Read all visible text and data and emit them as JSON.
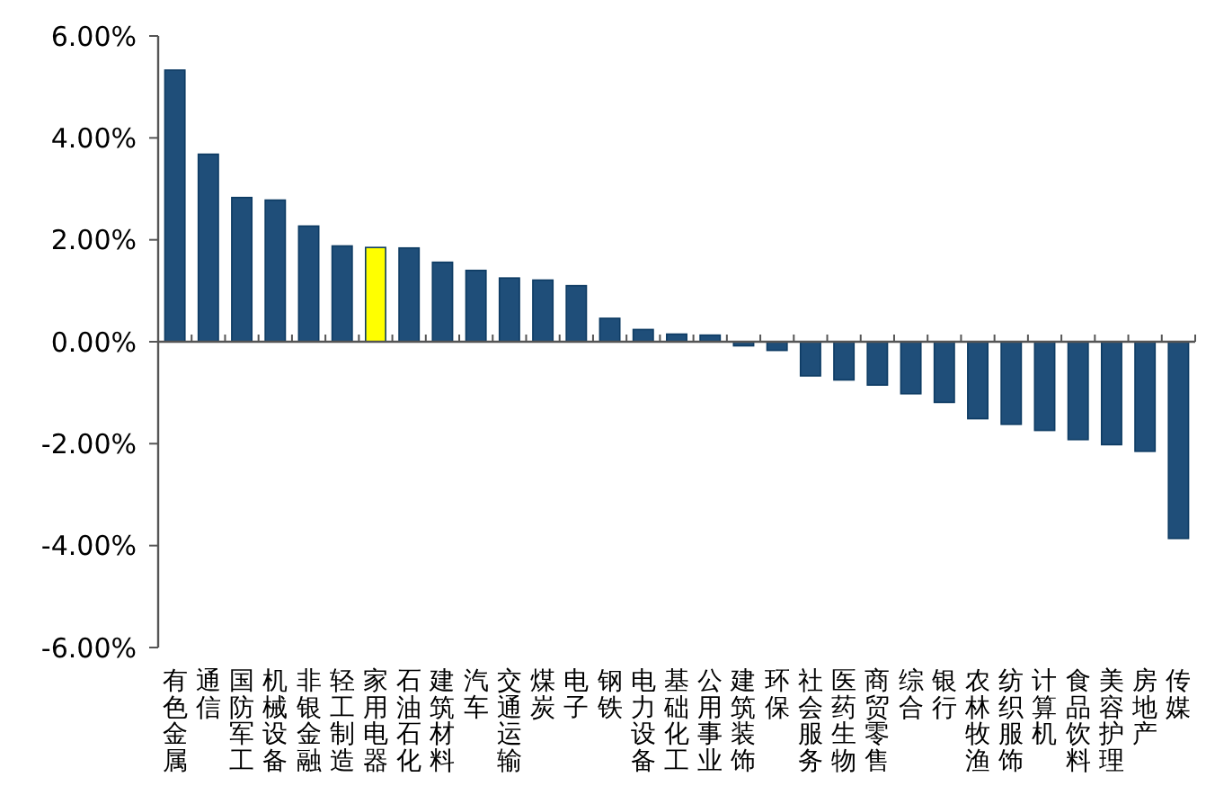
{
  "chart_data": {
    "type": "bar",
    "categories": [
      "有色金属",
      "通信",
      "国防军工",
      "机械设备",
      "非银金融",
      "轻工制造",
      "家用电器",
      "石油石化",
      "建筑材料",
      "汽车",
      "交通运输",
      "煤炭",
      "电子",
      "钢铁",
      "电力设备",
      "基础化工",
      "公用事业",
      "建筑装饰",
      "环保",
      "社会服务",
      "医药生物",
      "商贸零售",
      "综合",
      "银行",
      "农林牧渔",
      "纺织服饰",
      "计算机",
      "食品饮料",
      "美容护理",
      "房地产",
      "传媒"
    ],
    "values": [
      5.33,
      3.68,
      2.83,
      2.78,
      2.27,
      1.88,
      1.85,
      1.84,
      1.56,
      1.4,
      1.25,
      1.21,
      1.1,
      0.46,
      0.24,
      0.15,
      0.13,
      -0.08,
      -0.17,
      -0.67,
      -0.75,
      -0.85,
      -1.02,
      -1.19,
      -1.51,
      -1.62,
      -1.74,
      -1.92,
      -2.02,
      -2.15,
      -3.86
    ],
    "colors": [
      "#1f4e79",
      "#1f4e79",
      "#1f4e79",
      "#1f4e79",
      "#1f4e79",
      "#1f4e79",
      "#ffff00",
      "#1f4e79",
      "#1f4e79",
      "#1f4e79",
      "#1f4e79",
      "#1f4e79",
      "#1f4e79",
      "#1f4e79",
      "#1f4e79",
      "#1f4e79",
      "#1f4e79",
      "#1f4e79",
      "#1f4e79",
      "#1f4e79",
      "#1f4e79",
      "#1f4e79",
      "#1f4e79",
      "#1f4e79",
      "#1f4e79",
      "#1f4e79",
      "#1f4e79",
      "#1f4e79",
      "#1f4e79",
      "#1f4e79",
      "#1f4e79"
    ],
    "ylim": [
      -6,
      6
    ],
    "yticks": [
      {
        "value": -6,
        "label": "-6.00%"
      },
      {
        "value": -4,
        "label": "-4.00%"
      },
      {
        "value": -2,
        "label": "-2.00%"
      },
      {
        "value": 0,
        "label": "0.00%"
      },
      {
        "value": 2,
        "label": "2.00%"
      },
      {
        "value": 4,
        "label": "4.00%"
      },
      {
        "value": 6,
        "label": "6.00%"
      }
    ],
    "tick_labels": true
  }
}
